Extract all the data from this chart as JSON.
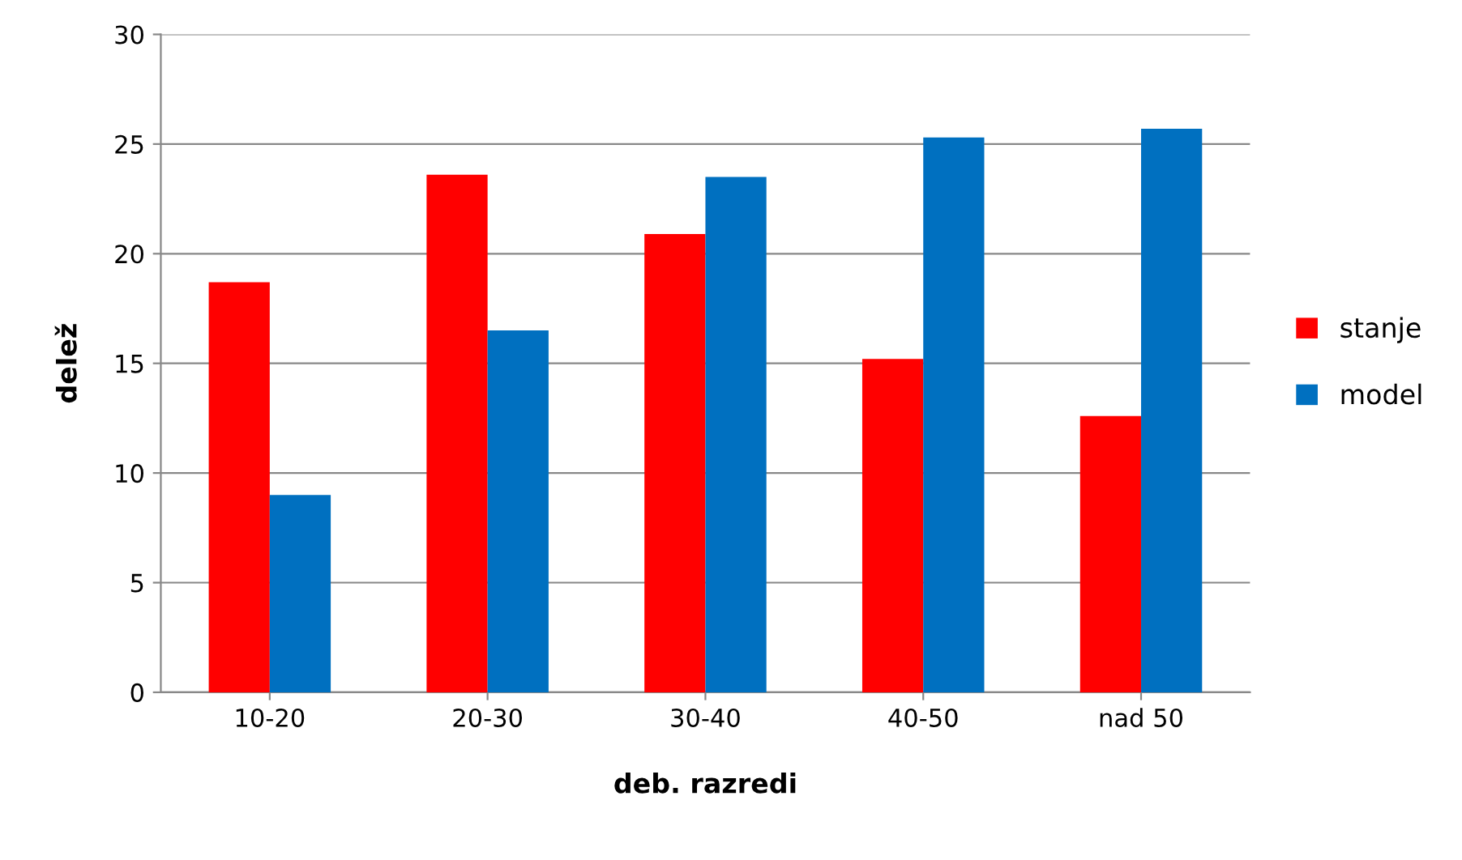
{
  "chart_data": {
    "type": "bar",
    "xlabel": "deb. razredi",
    "ylabel": "delež",
    "categories": [
      "10-20",
      "20-30",
      "30-40",
      "40-50",
      "nad 50"
    ],
    "series": [
      {
        "name": "stanje",
        "color": "#ff0000",
        "values": [
          18.7,
          23.6,
          20.9,
          15.2,
          12.6
        ]
      },
      {
        "name": "model",
        "color": "#0070c0",
        "values": [
          9.0,
          16.5,
          23.5,
          25.3,
          25.7
        ]
      }
    ],
    "ylim": [
      0,
      30
    ],
    "yticks": [
      0,
      5,
      10,
      15,
      20,
      25,
      30
    ],
    "grid": "y",
    "legend": "right"
  }
}
